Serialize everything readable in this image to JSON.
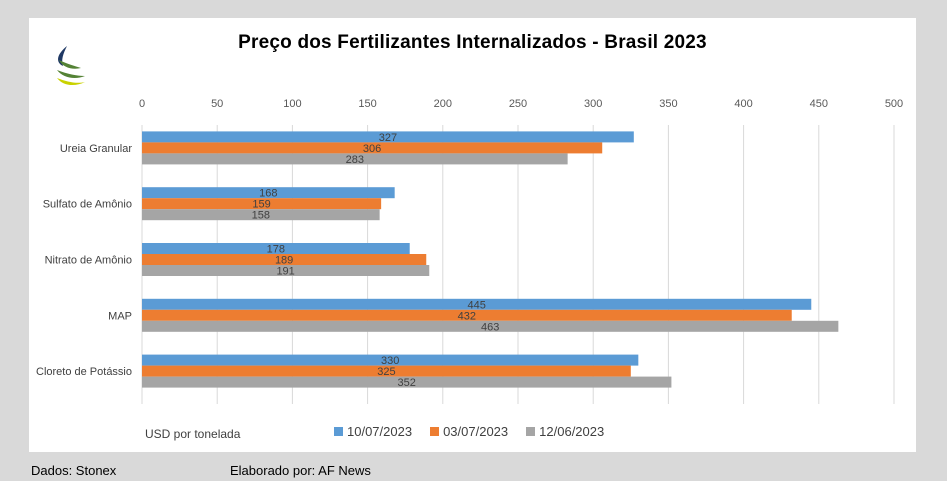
{
  "chart_data": {
    "type": "bar",
    "orientation": "horizontal",
    "title": "Preço dos Fertilizantes Internalizados  - Brasil 2023",
    "categories": [
      "Ureia Granular",
      "Sulfato de Amônio",
      "Nitrato de Amônio",
      "MAP",
      "Cloreto de Potássio"
    ],
    "series": [
      {
        "name": "10/07/2023",
        "color": "#5b9bd5",
        "values": [
          327,
          168,
          178,
          445,
          330
        ]
      },
      {
        "name": "03/07/2023",
        "color": "#ed7d31",
        "values": [
          306,
          159,
          189,
          432,
          325
        ]
      },
      {
        "name": "12/06/2023",
        "color": "#a5a5a5",
        "values": [
          283,
          158,
          191,
          463,
          352
        ]
      }
    ],
    "xlim": [
      0,
      500
    ],
    "xticks": [
      0,
      50,
      100,
      150,
      200,
      250,
      300,
      350,
      400,
      450,
      500
    ],
    "xaxis_position": "top",
    "grid": true,
    "legend_position": "bottom",
    "unit_label": "USD por tonelada"
  },
  "footer": {
    "source": "Dados: Stonex",
    "author": "Elaborado por: AF News"
  },
  "logo": {
    "icon": "leaf-logo-icon",
    "colors": [
      "#1f3864",
      "#548235",
      "#c9d200"
    ]
  }
}
